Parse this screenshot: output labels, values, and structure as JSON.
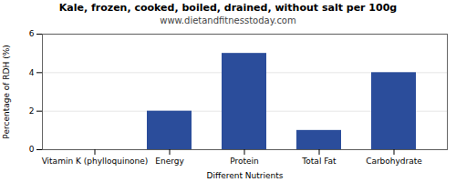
{
  "chart_data": {
    "type": "bar",
    "title": "Kale, frozen, cooked, boiled, drained, without salt per 100g",
    "subtitle": "www.dietandfitnesstoday.com",
    "xlabel": "Different Nutrients",
    "ylabel": "Percentage of RDH (%)",
    "categories": [
      "Vitamin K (phylloquinone)",
      "Energy",
      "Protein",
      "Total Fat",
      "Carbohydrate"
    ],
    "values": [
      0,
      2.0,
      5.0,
      1.0,
      4.0
    ],
    "color": "#2b4d9b",
    "ylim": [
      0,
      6
    ],
    "yticks": [
      0,
      2,
      4,
      6
    ],
    "grid": true
  }
}
